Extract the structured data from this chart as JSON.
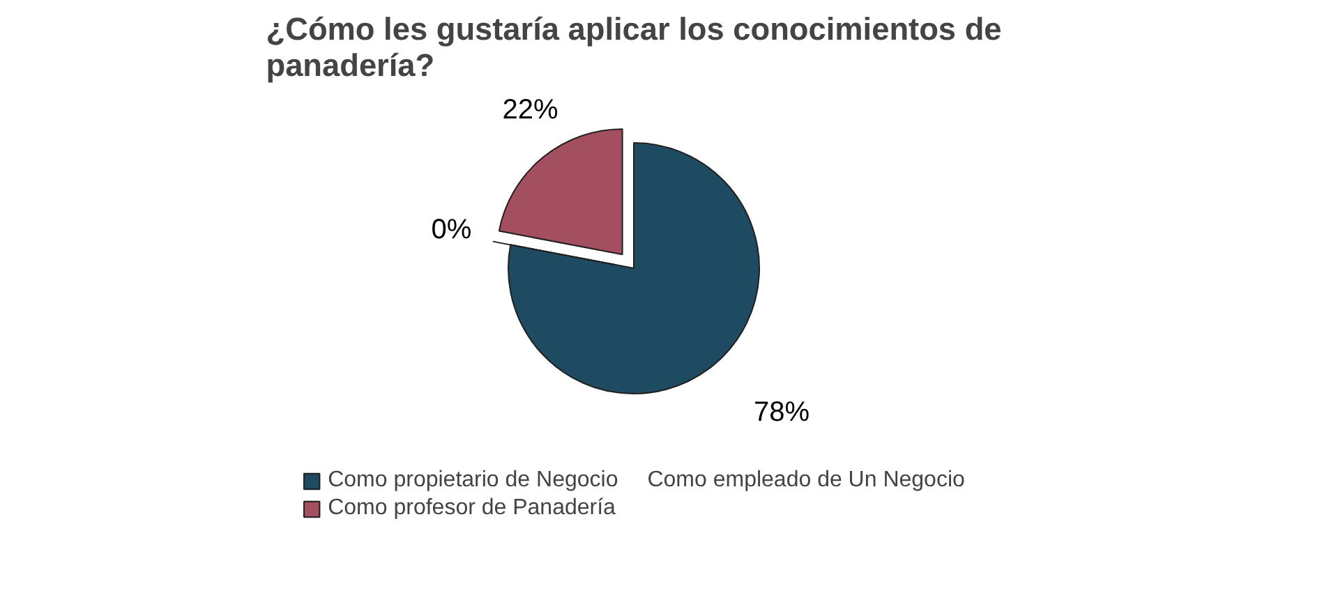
{
  "chart_data": {
    "type": "pie",
    "title": "¿Cómo les gustaría aplicar los conocimientos de panadería?",
    "categories": [
      "Como propietario de Negocio",
      "Como empleado de Un Negocio",
      "Como profesor de Panadería"
    ],
    "values": [
      78,
      0,
      22
    ],
    "colors": [
      "#1f4b62",
      "#3a8f80",
      "#a34f5f"
    ],
    "value_labels": [
      "78%",
      "0%",
      "22%"
    ],
    "legend": "bottom"
  }
}
